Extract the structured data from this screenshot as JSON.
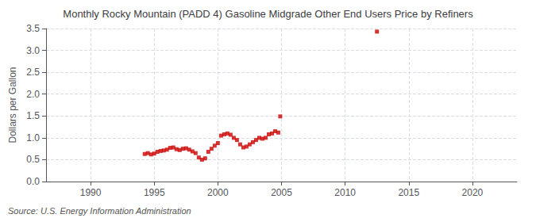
{
  "chart_data": {
    "type": "scatter",
    "title": "Monthly Rocky Mountain (PADD 4) Gasoline Midgrade Other End Users Price by Refiners",
    "ylabel": "Dollars per Gallon",
    "annotations": [
      "Source: U.S. Energy Information Administration"
    ],
    "x": [
      1994.25,
      1994.5,
      1994.75,
      1995.0,
      1995.25,
      1995.5,
      1995.75,
      1996.0,
      1996.25,
      1996.5,
      1996.75,
      1997.0,
      1997.25,
      1997.5,
      1997.75,
      1998.0,
      1998.25,
      1998.5,
      1998.75,
      1999.0,
      1999.25,
      1999.5,
      1999.75,
      2000.0,
      2000.25,
      2000.5,
      2000.75,
      2001.0,
      2001.25,
      2001.5,
      2001.75,
      2002.0,
      2002.25,
      2002.5,
      2002.75,
      2003.0,
      2003.25,
      2003.5,
      2003.75,
      2004.0,
      2004.25,
      2004.5,
      2004.75,
      2004.9,
      2012.5
    ],
    "values": [
      0.63,
      0.65,
      0.62,
      0.64,
      0.68,
      0.7,
      0.71,
      0.73,
      0.77,
      0.78,
      0.74,
      0.72,
      0.75,
      0.76,
      0.73,
      0.69,
      0.65,
      0.55,
      0.5,
      0.53,
      0.68,
      0.75,
      0.82,
      0.88,
      1.05,
      1.08,
      1.1,
      1.07,
      1.0,
      0.95,
      0.85,
      0.78,
      0.8,
      0.85,
      0.9,
      0.95,
      1.0,
      0.98,
      1.0,
      1.08,
      1.1,
      1.15,
      1.12,
      1.49,
      3.43
    ],
    "color": "#cc0000",
    "marker": "square",
    "xlim": [
      1986.5,
      2023.5
    ],
    "ylim": [
      0.0,
      3.5
    ],
    "xticks": [
      1990,
      1995,
      2000,
      2005,
      2010,
      2015,
      2020
    ],
    "yticks": [
      {
        "value": 0.0,
        "label": "0.0"
      },
      0.5,
      {
        "value": 1.0,
        "label": "1.0"
      },
      1.5,
      {
        "value": 2.0,
        "label": "2.0"
      },
      2.5,
      {
        "value": 3.0,
        "label": "3.0"
      },
      3.5
    ],
    "grid": true
  }
}
